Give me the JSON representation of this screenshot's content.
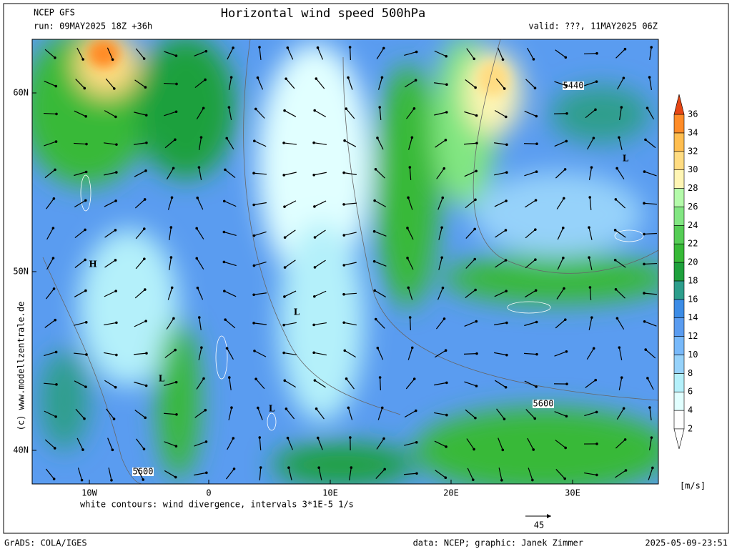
{
  "header": {
    "model": "NCEP GFS",
    "run": "run: 09MAY2025 18Z +36h",
    "title": "Horizontal wind speed 500hPa",
    "valid": "valid: ???, 11MAY2025 06Z"
  },
  "map": {
    "lat_labels": [
      "60N",
      "50N",
      "40N"
    ],
    "lon_labels": [
      "10W",
      "0",
      "10E",
      "20E",
      "30E"
    ],
    "contour_labels": [
      "5440",
      "5600",
      "5600"
    ],
    "centers": [
      "H",
      "L",
      "L",
      "L",
      "L"
    ]
  },
  "colorbar": {
    "unit": "[m/s]",
    "levels": [
      2,
      4,
      6,
      8,
      10,
      12,
      14,
      16,
      18,
      20,
      22,
      24,
      26,
      28,
      30,
      32,
      34,
      36
    ],
    "colors": [
      "#ffffff",
      "#e1ffff",
      "#b4f0fa",
      "#96d2fa",
      "#78b9fa",
      "#5a9cf0",
      "#3c8ce6",
      "#2d9e8c",
      "#1ea03c",
      "#37b937",
      "#55cd55",
      "#82e682",
      "#b4faaa",
      "#fff5b4",
      "#ffdc82",
      "#ffbe50",
      "#ff8c28",
      "#e64614"
    ]
  },
  "footer": {
    "note": "white contours: wind divergence, intervals 3*1E-5 1/s",
    "arrow_scale": "45",
    "credit_side": "(c) www.modellzentrale.de",
    "software": "GrADS: COLA/IGES",
    "data": "data: NCEP; graphic: Janek Zimmer",
    "timestamp": "2025-05-09-23:51"
  }
}
